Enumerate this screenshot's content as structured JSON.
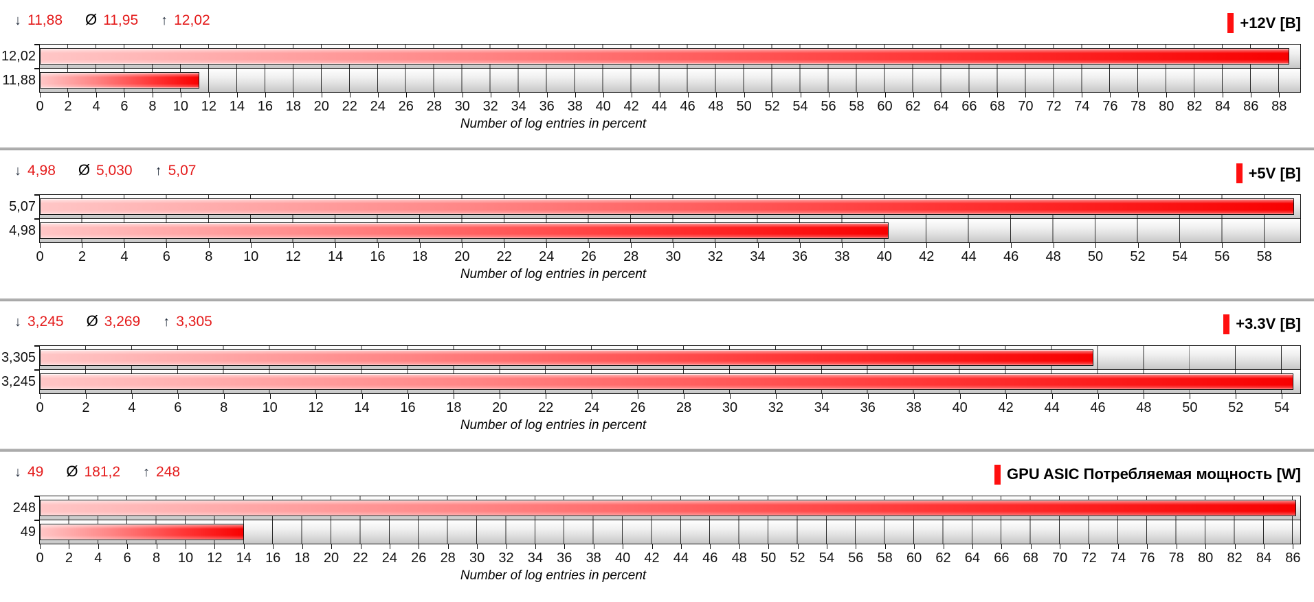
{
  "axis_title": "Number of log entries in percent",
  "stats_symbols": {
    "min": "↓",
    "avg": "Ø",
    "max": "↑"
  },
  "colors": {
    "stat_value_red": "#e41a1a",
    "legend_red": "#ff0f0f",
    "bar_gradient_start": "#ffc6c6",
    "bar_gradient_end": "#f80000",
    "track_gradient_top": "#ffffff",
    "track_gradient_bottom": "#c7c7c7",
    "grid_line": "#1c1c1c",
    "separator_gray": "#a9a9a9",
    "text_black": "#111111"
  },
  "chart_data": [
    {
      "type": "bar",
      "orientation": "horizontal",
      "title": "+12V [B]",
      "categories": [
        "12,02",
        "11,88"
      ],
      "values": [
        88.7,
        11.3
      ],
      "stats": {
        "min": "11,88",
        "avg": "11,95",
        "max": "12,02"
      },
      "xlabel": "Number of log entries in percent",
      "xlim": [
        0,
        89.5
      ],
      "tick_step": 2,
      "grid": true,
      "legend_position": "top-right"
    },
    {
      "type": "bar",
      "orientation": "horizontal",
      "title": "+5V [B]",
      "categories": [
        "5,07",
        "4,98"
      ],
      "values": [
        59.4,
        40.2
      ],
      "stats": {
        "min": "4,98",
        "avg": "5,030",
        "max": "5,07"
      },
      "xlabel": "Number of log entries in percent",
      "xlim": [
        0,
        59.7
      ],
      "tick_step": 2,
      "grid": true,
      "legend_position": "top-right"
    },
    {
      "type": "bar",
      "orientation": "horizontal",
      "title": "+3.3V [B]",
      "categories": [
        "3,305",
        "3,245"
      ],
      "values": [
        45.8,
        54.5
      ],
      "stats": {
        "min": "3,245",
        "avg": "3,269",
        "max": "3,305"
      },
      "xlabel": "Number of log entries in percent",
      "xlim": [
        0,
        54.8
      ],
      "tick_step": 2,
      "grid": true,
      "legend_position": "top-right"
    },
    {
      "type": "bar",
      "orientation": "horizontal",
      "title": "GPU ASIC Потребляемая мощность [W]",
      "categories": [
        "248",
        "49"
      ],
      "values": [
        86.2,
        14.0
      ],
      "stats": {
        "min": "49",
        "avg": "181,2",
        "max": "248"
      },
      "xlabel": "Number of log entries in percent",
      "xlim": [
        0,
        86.5
      ],
      "tick_step": 2,
      "grid": true,
      "legend_position": "top-right"
    }
  ]
}
